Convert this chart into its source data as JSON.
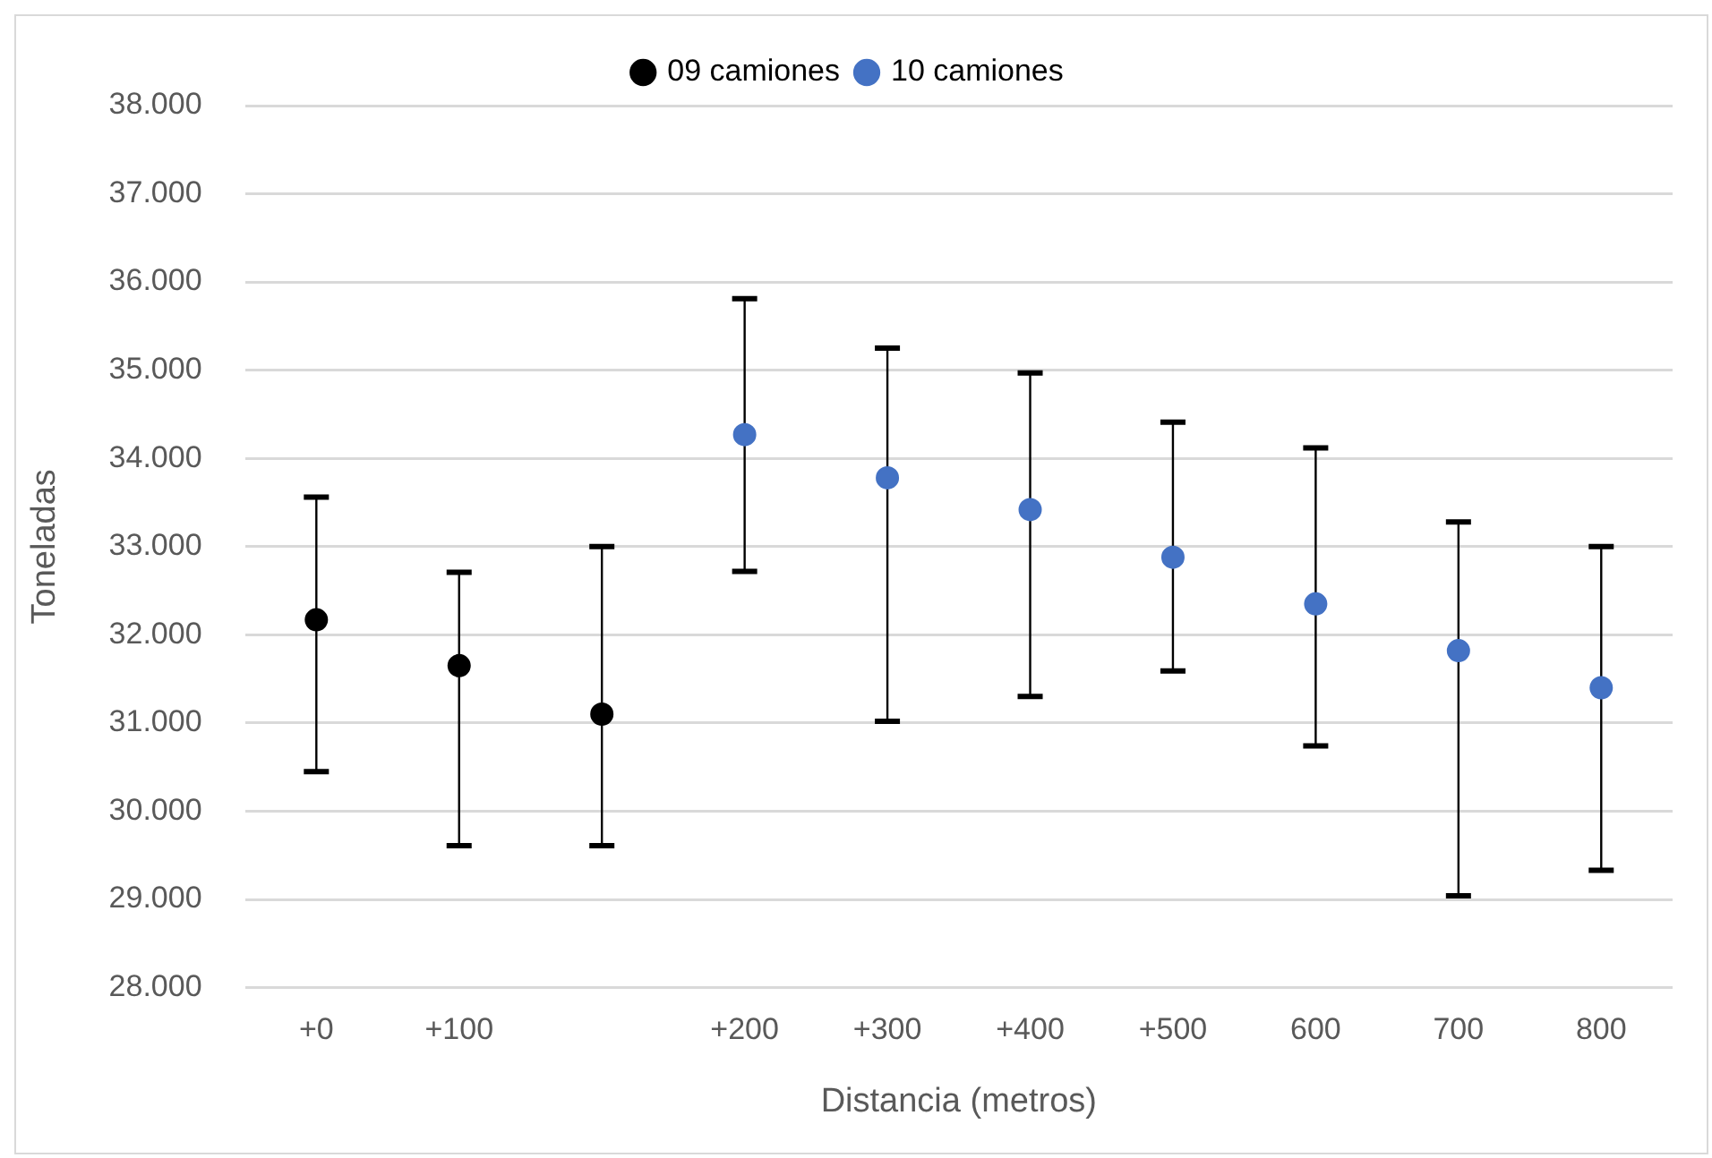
{
  "chart_data": {
    "type": "scatter",
    "xlabel": "Distancia (metros)",
    "ylabel": "Toneladas",
    "categories": [
      "+0",
      "+100",
      null,
      "+200",
      "+300",
      "+400",
      "+500",
      "600",
      "700",
      "800"
    ],
    "series": [
      {
        "name": "09 camiones",
        "color": "#000000",
        "values": [
          32170,
          31650,
          31100,
          null,
          null,
          null,
          null,
          null,
          null,
          null
        ],
        "errors": [
          [
            30450,
            33560
          ],
          [
            29610,
            32710
          ],
          [
            29610,
            33000
          ],
          null,
          null,
          null,
          null,
          null,
          null,
          null
        ]
      },
      {
        "name": "10 camiones",
        "color": "#4472c4",
        "values": [
          null,
          null,
          null,
          34270,
          33780,
          33420,
          32880,
          32350,
          31820,
          31400
        ],
        "errors": [
          null,
          null,
          null,
          [
            32720,
            35810
          ],
          [
            31020,
            35250
          ],
          [
            31300,
            34970
          ],
          [
            31590,
            34410
          ],
          [
            30740,
            34120
          ],
          [
            29040,
            33280
          ],
          [
            29330,
            33000
          ]
        ]
      }
    ],
    "ylim": [
      28000,
      38000
    ],
    "yticks": [
      {
        "value": 28000,
        "label": "28.000"
      },
      {
        "value": 29000,
        "label": "29.000"
      },
      {
        "value": 30000,
        "label": "30.000"
      },
      {
        "value": 31000,
        "label": "31.000"
      },
      {
        "value": 32000,
        "label": "32.000"
      },
      {
        "value": 33000,
        "label": "33.000"
      },
      {
        "value": 34000,
        "label": "34.000"
      },
      {
        "value": 35000,
        "label": "35.000"
      },
      {
        "value": 36000,
        "label": "36.000"
      },
      {
        "value": 37000,
        "label": "37.000"
      },
      {
        "value": 38000,
        "label": "38.000"
      }
    ],
    "grid": "y",
    "legend": "top",
    "marker": "circle"
  }
}
